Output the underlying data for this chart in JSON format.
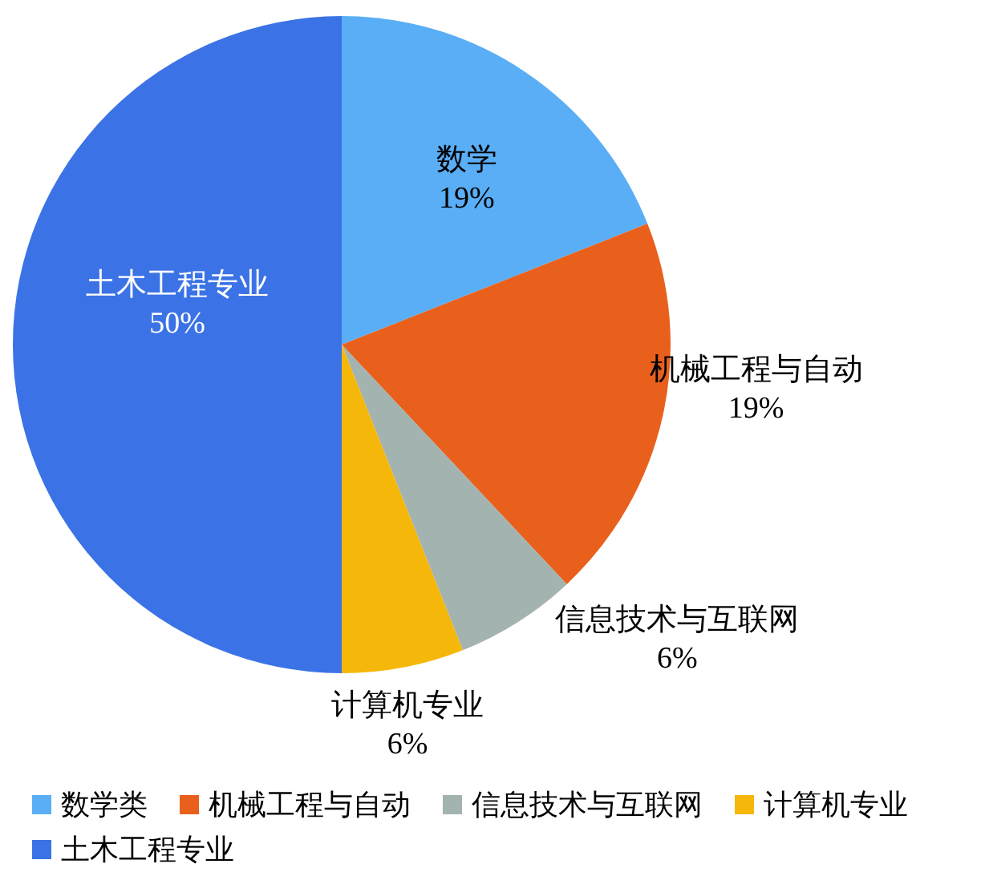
{
  "chart_data": {
    "type": "pie",
    "categories": [
      "数学类",
      "机械工程与自动",
      "信息技术与互联网",
      "计算机专业",
      "土木工程专业"
    ],
    "values": [
      19,
      19,
      6,
      6,
      50
    ],
    "colors": [
      "#5aaef5",
      "#e8601c",
      "#a3b3b0",
      "#f5b70a",
      "#3b73e6"
    ],
    "value_labels": [
      "数学\n19%",
      "机械工程与自动\n19%",
      "信息技术与互联网\n6%",
      "计算机专业\n6%",
      "土木工程专业\n50%"
    ],
    "legend": "bottom"
  }
}
